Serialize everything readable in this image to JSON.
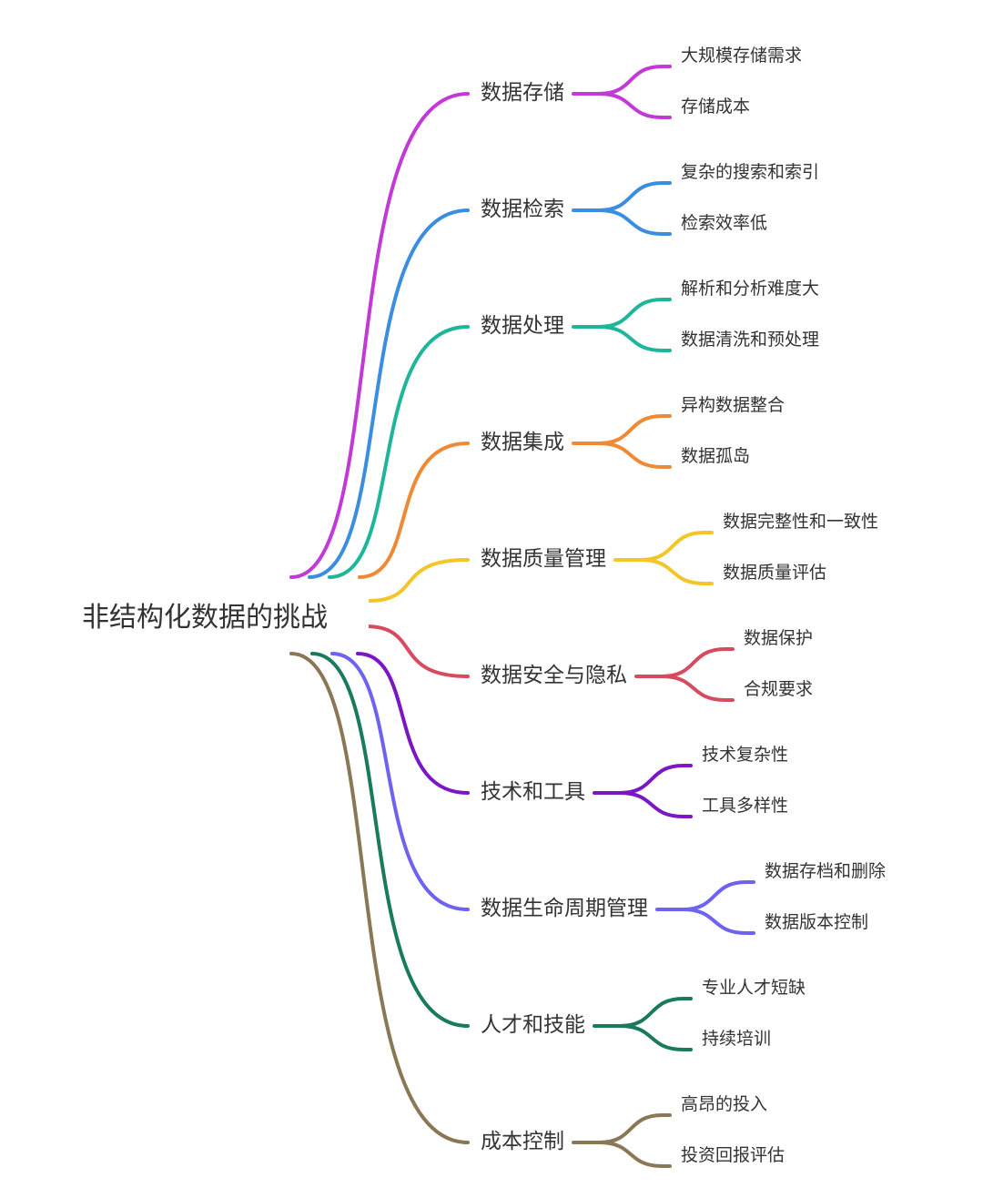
{
  "root": {
    "label": "非结构化数据的挑战"
  },
  "branches": [
    {
      "label": "数据存储",
      "color": "#c23ad6",
      "children": [
        "大规模存储需求",
        "存储成本"
      ]
    },
    {
      "label": "数据检索",
      "color": "#3b8de0",
      "children": [
        "复杂的搜索和索引",
        "检索效率低"
      ]
    },
    {
      "label": "数据处理",
      "color": "#1fb59a",
      "children": [
        "解析和分析难度大",
        "数据清洗和预处理"
      ]
    },
    {
      "label": "数据集成",
      "color": "#ee8a36",
      "children": [
        "异构数据整合",
        "数据孤岛"
      ]
    },
    {
      "label": "数据质量管理",
      "color": "#f3c526",
      "children": [
        "数据完整性和一致性",
        "数据质量评估"
      ]
    },
    {
      "label": "数据安全与隐私",
      "color": "#d64b5e",
      "children": [
        "数据保护",
        "合规要求"
      ]
    },
    {
      "label": "技术和工具",
      "color": "#7a16c4",
      "children": [
        "技术复杂性",
        "工具多样性"
      ]
    },
    {
      "label": "数据生命周期管理",
      "color": "#6e63f0",
      "children": [
        "数据存档和删除",
        "数据版本控制"
      ]
    },
    {
      "label": "人才和技能",
      "color": "#1a7a5e",
      "children": [
        "专业人才短缺",
        "持续培训"
      ]
    },
    {
      "label": "成本控制",
      "color": "#8a7756",
      "children": [
        "高昂的投入",
        "投资回报评估"
      ]
    }
  ]
}
